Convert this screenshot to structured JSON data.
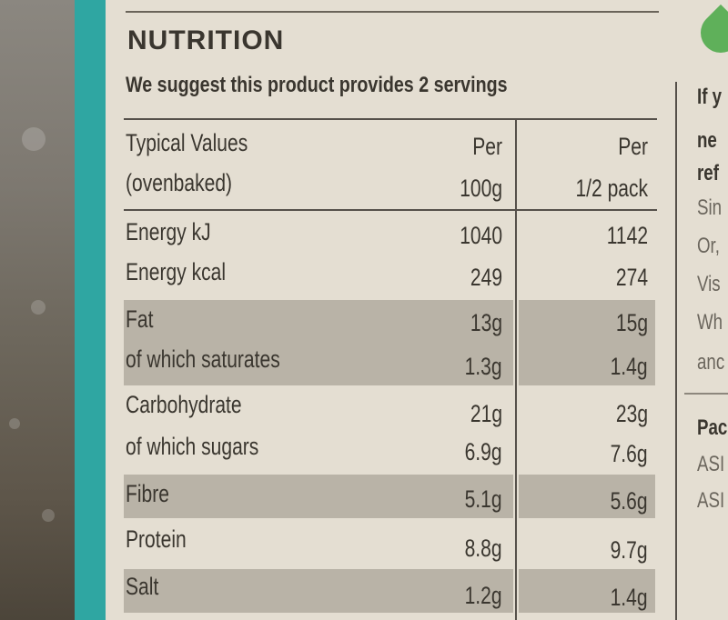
{
  "label": {
    "title": "NUTRITION",
    "subtitle": "We suggest this product provides 2 servings",
    "header": {
      "col1_line1": "Typical Values",
      "col1_line2": "(ovenbaked)",
      "col2_line1": "Per",
      "col2_line2": "100g",
      "col3_line1": "Per",
      "col3_line2": "1/2 pack"
    },
    "rows": [
      {
        "name": "Energy kJ",
        "per100": "1040",
        "perhalf": "1142"
      },
      {
        "name": "Energy kcal",
        "per100": "249",
        "perhalf": "274"
      },
      {
        "name": "Fat",
        "per100": "13g",
        "perhalf": "15g"
      },
      {
        "name": "of which saturates",
        "per100": "1.3g",
        "perhalf": "1.4g"
      },
      {
        "name": "Carbohydrate",
        "per100": "21g",
        "perhalf": "23g"
      },
      {
        "name": "of which sugars",
        "per100": "6.9g",
        "perhalf": "7.6g"
      },
      {
        "name": "Fibre",
        "per100": "5.1g",
        "perhalf": "5.6g"
      },
      {
        "name": "Protein",
        "per100": "8.8g",
        "perhalf": "9.7g"
      },
      {
        "name": "Salt",
        "per100": "1.2g",
        "perhalf": "1.4g"
      }
    ]
  },
  "right_panel": {
    "fragments": [
      "If y",
      "ne",
      "ref",
      "Sin",
      "Or,",
      "Vis",
      "Wh",
      "anc",
      "Pac",
      "ASI",
      "ASI"
    ]
  },
  "colors": {
    "teal_stripe": "#2fa6a2",
    "panel": "#e4ded2",
    "shaded_row": "#b9b3a7",
    "leaf": "#5fb05a"
  }
}
